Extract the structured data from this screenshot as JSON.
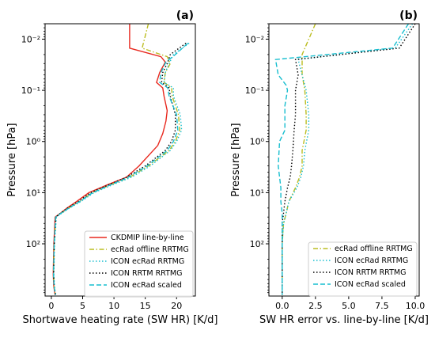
{
  "chart_data": [
    {
      "type": "line",
      "panel_label": "(a)",
      "xlabel": "Shortwave heating rate (SW HR) [K/d]",
      "ylabel": "Pressure [hPa]",
      "xlim": [
        -1,
        23
      ],
      "ylim_log": [
        1050,
        0.005
      ],
      "y_scale": "log",
      "y_inverted": true,
      "grid": false,
      "legend_position": "lower-right",
      "xticks": [
        0,
        5,
        10,
        15,
        20
      ],
      "xtick_labels": [
        "0",
        "5",
        "10",
        "15",
        "20"
      ],
      "yticks": [
        0.01,
        0.1,
        1,
        10,
        100
      ],
      "ytick_labels": [
        "10⁻²",
        "10⁻¹",
        "10⁰",
        "10¹",
        "10²"
      ],
      "series": [
        {
          "name": "CKDMIP line-by-line",
          "color": "#e8281e",
          "dash": "solid",
          "points": [
            [
              12.5,
              0.005
            ],
            [
              12.5,
              0.015
            ],
            [
              17.5,
              0.022
            ],
            [
              18.2,
              0.028
            ],
            [
              17.3,
              0.045
            ],
            [
              16.8,
              0.07
            ],
            [
              17.8,
              0.09
            ],
            [
              18,
              0.13
            ],
            [
              18.5,
              0.25
            ],
            [
              18.3,
              0.4
            ],
            [
              17.8,
              0.7
            ],
            [
              17,
              1.2
            ],
            [
              14,
              3
            ],
            [
              12,
              5
            ],
            [
              9,
              7
            ],
            [
              6,
              10
            ],
            [
              4,
              15
            ],
            [
              2.5,
              20
            ],
            [
              1.5,
              25
            ],
            [
              0.6,
              30
            ],
            [
              0.4,
              100
            ],
            [
              0.3,
              400
            ],
            [
              0.4,
              700
            ],
            [
              0.6,
              1000
            ]
          ]
        },
        {
          "name": "ecRad offline RRTMG",
          "color": "#bcbd22",
          "dash": "dashdot",
          "points": [
            [
              15.5,
              0.005
            ],
            [
              14.5,
              0.015
            ],
            [
              18.5,
              0.022
            ],
            [
              19,
              0.03
            ],
            [
              18.2,
              0.045
            ],
            [
              18,
              0.07
            ],
            [
              19.2,
              0.09
            ],
            [
              19.3,
              0.13
            ],
            [
              20.3,
              0.3
            ],
            [
              20.5,
              0.6
            ],
            [
              19.8,
              1
            ],
            [
              18.8,
              1.5
            ],
            [
              15.5,
              3
            ],
            [
              12.5,
              5
            ],
            [
              9.5,
              7
            ],
            [
              6.5,
              10
            ],
            [
              4.5,
              15
            ],
            [
              2.8,
              20
            ],
            [
              1.6,
              25
            ],
            [
              0.7,
              30
            ],
            [
              0.45,
              100
            ],
            [
              0.35,
              400
            ],
            [
              0.45,
              700
            ],
            [
              0.65,
              1000
            ]
          ]
        },
        {
          "name": "ICON ecRad RRTMG",
          "color": "#17becf",
          "dash": "dotted",
          "points": [
            [
              22,
              0.012
            ],
            [
              19.5,
              0.02
            ],
            [
              18.8,
              0.03
            ],
            [
              18.2,
              0.045
            ],
            [
              18,
              0.07
            ],
            [
              19.5,
              0.09
            ],
            [
              19.5,
              0.13
            ],
            [
              20.6,
              0.3
            ],
            [
              20.8,
              0.6
            ],
            [
              20,
              1
            ],
            [
              19,
              1.5
            ],
            [
              15.8,
              3
            ],
            [
              12.8,
              5
            ],
            [
              9.8,
              7
            ],
            [
              6.8,
              10
            ],
            [
              4.7,
              15
            ],
            [
              2.9,
              20
            ],
            [
              1.7,
              25
            ],
            [
              0.8,
              30
            ],
            [
              0.5,
              100
            ],
            [
              0.4,
              400
            ],
            [
              0.5,
              700
            ],
            [
              0.7,
              1000
            ]
          ]
        },
        {
          "name": "ICON RRTM RRTMG",
          "color": "#000000",
          "dash": "dotted",
          "points": [
            [
              21.5,
              0.012
            ],
            [
              19,
              0.02
            ],
            [
              18.5,
              0.03
            ],
            [
              17.8,
              0.045
            ],
            [
              17.6,
              0.07
            ],
            [
              18.8,
              0.09
            ],
            [
              19,
              0.13
            ],
            [
              19.8,
              0.3
            ],
            [
              19.8,
              0.6
            ],
            [
              19.2,
              1
            ],
            [
              18.2,
              1.5
            ],
            [
              15,
              3
            ],
            [
              12,
              5
            ],
            [
              9.2,
              7
            ],
            [
              6.3,
              10
            ],
            [
              4.3,
              15
            ],
            [
              2.6,
              20
            ],
            [
              1.5,
              25
            ],
            [
              0.7,
              30
            ],
            [
              0.45,
              100
            ],
            [
              0.35,
              400
            ],
            [
              0.45,
              700
            ],
            [
              0.65,
              1000
            ]
          ]
        },
        {
          "name": "ICON ecRad scaled",
          "color": "#17becf",
          "dash": "dashed",
          "points": [
            [
              21.8,
              0.012
            ],
            [
              19.8,
              0.02
            ],
            [
              18.3,
              0.028
            ],
            [
              17.5,
              0.045
            ],
            [
              17.3,
              0.07
            ],
            [
              18.6,
              0.09
            ],
            [
              18.8,
              0.13
            ],
            [
              20,
              0.3
            ],
            [
              20.2,
              0.6
            ],
            [
              19.5,
              1
            ],
            [
              18.5,
              1.5
            ],
            [
              15.3,
              3
            ],
            [
              12.3,
              5
            ],
            [
              9.5,
              7
            ],
            [
              6.6,
              10
            ],
            [
              4.5,
              15
            ],
            [
              2.8,
              20
            ],
            [
              1.6,
              25
            ],
            [
              0.7,
              30
            ],
            [
              0.45,
              100
            ],
            [
              0.35,
              400
            ],
            [
              0.45,
              700
            ],
            [
              0.65,
              1000
            ]
          ]
        }
      ]
    },
    {
      "type": "line",
      "panel_label": "(b)",
      "xlabel": "SW HR error vs. line-by-line [K/d]",
      "ylabel": "Pressure [hPa]",
      "xlim": [
        -1,
        10.3
      ],
      "ylim_log": [
        1050,
        0.005
      ],
      "y_scale": "log",
      "y_inverted": true,
      "grid": false,
      "legend_position": "lower-right",
      "xticks": [
        0,
        2.5,
        5,
        7.5,
        10
      ],
      "xtick_labels": [
        "0.0",
        "2.5",
        "5.0",
        "7.5",
        "10.0"
      ],
      "yticks": [
        0.01,
        0.1,
        1,
        10,
        100
      ],
      "ytick_labels": [
        "10⁻²",
        "10⁻¹",
        "10⁰",
        "10¹",
        "10²"
      ],
      "series": [
        {
          "name": "ecRad offline RRTMG",
          "color": "#bcbd22",
          "dash": "dashdot",
          "points": [
            [
              2.5,
              0.005
            ],
            [
              1.5,
              0.02
            ],
            [
              1.5,
              0.05
            ],
            [
              1.7,
              0.1
            ],
            [
              1.8,
              0.3
            ],
            [
              1.8,
              0.6
            ],
            [
              1.5,
              1.5
            ],
            [
              1.5,
              3
            ],
            [
              1.3,
              5
            ],
            [
              1,
              8
            ],
            [
              0.5,
              15
            ],
            [
              0.3,
              25
            ],
            [
              0.1,
              40
            ],
            [
              0,
              100
            ],
            [
              0,
              1000
            ]
          ]
        },
        {
          "name": "ICON ecRad RRTMG",
          "color": "#17becf",
          "dash": "dotted",
          "points": [
            [
              9.8,
              0.005
            ],
            [
              8.5,
              0.015
            ],
            [
              1.2,
              0.025
            ],
            [
              1.5,
              0.05
            ],
            [
              1.8,
              0.1
            ],
            [
              2,
              0.3
            ],
            [
              2,
              0.6
            ],
            [
              1.7,
              1.5
            ],
            [
              1.6,
              3
            ],
            [
              1.4,
              5
            ],
            [
              1.1,
              8
            ],
            [
              0.5,
              15
            ],
            [
              0.3,
              25
            ],
            [
              0.1,
              40
            ],
            [
              0,
              100
            ],
            [
              0,
              1000
            ]
          ]
        },
        {
          "name": "ICON RRTM RRTMG",
          "color": "#000000",
          "dash": "dotted",
          "points": [
            [
              10,
              0.005
            ],
            [
              8.8,
              0.015
            ],
            [
              1,
              0.025
            ],
            [
              1.2,
              0.05
            ],
            [
              1,
              0.1
            ],
            [
              1,
              0.3
            ],
            [
              0.9,
              0.6
            ],
            [
              0.8,
              1.5
            ],
            [
              0.7,
              3
            ],
            [
              0.6,
              5
            ],
            [
              0.4,
              8
            ],
            [
              0.2,
              15
            ],
            [
              0.1,
              25
            ],
            [
              0,
              40
            ],
            [
              0,
              100
            ],
            [
              0,
              1000
            ]
          ]
        },
        {
          "name": "ICON ecRad scaled",
          "color": "#17becf",
          "dash": "dashed",
          "points": [
            [
              9.5,
              0.005
            ],
            [
              8.3,
              0.015
            ],
            [
              -0.5,
              0.025
            ],
            [
              -0.3,
              0.05
            ],
            [
              0.3,
              0.08
            ],
            [
              0.4,
              0.1
            ],
            [
              0.2,
              0.2
            ],
            [
              0.2,
              0.6
            ],
            [
              -0.2,
              1
            ],
            [
              -0.3,
              3
            ],
            [
              -0.2,
              5
            ],
            [
              -0.1,
              8
            ],
            [
              -0.1,
              15
            ],
            [
              0,
              25
            ],
            [
              0,
              40
            ],
            [
              0,
              100
            ],
            [
              0,
              1000
            ]
          ]
        }
      ]
    }
  ]
}
